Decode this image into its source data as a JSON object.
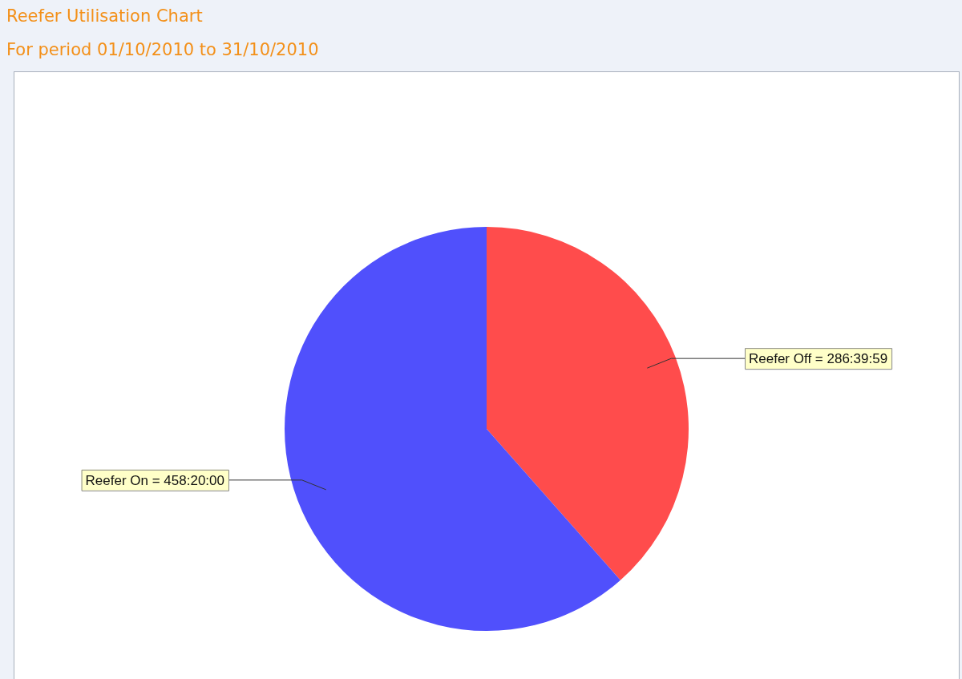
{
  "chart_data": {
    "type": "pie",
    "title": "Reefer Utilisation Chart",
    "subtitle": "For period 01/10/2010 to 31/10/2010",
    "categories": [
      "Reefer Off",
      "Reefer On"
    ],
    "values": [
      286.6664,
      458.3333
    ],
    "colors": [
      "#ff4c4c",
      "#5050fc"
    ],
    "value_labels": [
      "= 286:39:59",
      "= 458:20:00"
    ],
    "legend": false
  }
}
